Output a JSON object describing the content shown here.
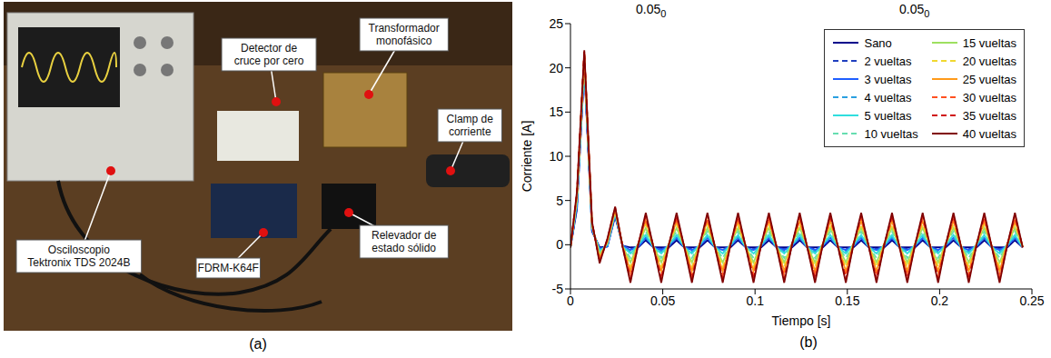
{
  "top_texts": [
    {
      "text": "0.05",
      "sub": "0"
    },
    {
      "text": "0.05",
      "sub": "0"
    }
  ],
  "panel_a": {
    "panel_label": "(a)",
    "callouts": [
      {
        "text": [
          "Osciloscopio",
          "Tektronix TDS 2024B"
        ]
      },
      {
        "text": [
          "Detector de",
          "cruce por cero"
        ]
      },
      {
        "text": [
          "Transformador",
          "monofásico"
        ]
      },
      {
        "text": [
          "Clamp de",
          "corriente"
        ]
      },
      {
        "text": [
          "FDRM-K64F"
        ]
      },
      {
        "text": [
          "Relevador de",
          "estado sólido"
        ]
      }
    ]
  },
  "chart_data": {
    "type": "line",
    "panel_label": "(b)",
    "x_label": "Tiempo [s]",
    "y_label": "Corriente [A]",
    "xlim": [
      0,
      0.25
    ],
    "xticks": [
      0,
      0.05,
      0.1,
      0.15,
      0.2,
      0.25
    ],
    "ylim": [
      -5,
      25
    ],
    "yticks": [
      -5,
      0,
      5,
      10,
      15,
      20,
      25
    ],
    "grid": false,
    "legend": "upper right",
    "x": [
      0,
      0.0035,
      0.0075,
      0.0117,
      0.0158,
      0.02,
      0.0242,
      0.0283,
      0.0325,
      0.0367,
      0.0408,
      0.045,
      0.0492,
      0.0533,
      0.0575,
      0.0617,
      0.0658,
      0.07,
      0.0742,
      0.0783,
      0.0825,
      0.0867,
      0.0908,
      0.095,
      0.0992,
      0.1033,
      0.1075,
      0.1117,
      0.1158,
      0.12,
      0.1242,
      0.1283,
      0.1325,
      0.1367,
      0.1408,
      0.145,
      0.1492,
      0.1533,
      0.1575,
      0.1617,
      0.1658,
      0.17,
      0.1742,
      0.1783,
      0.1825,
      0.1867,
      0.1908,
      0.195,
      0.1992,
      0.2033,
      0.2075,
      0.2117,
      0.2158,
      0.22,
      0.2242,
      0.2283,
      0.2325,
      0.2367,
      0.2408,
      0.245
    ],
    "series": [
      {
        "name": "Sano",
        "color": "#00008b",
        "line_style": "solid",
        "values": [
          -0.3,
          4,
          20,
          1.5,
          -0.3,
          -0.2,
          3.2,
          -0.1,
          -0.3,
          -0.3,
          0.5,
          -0.3,
          -0.3,
          -0.3,
          0.5,
          -0.3,
          -0.3,
          -0.3,
          0.5,
          -0.3,
          -0.3,
          -0.3,
          0.5,
          -0.3,
          -0.3,
          -0.3,
          0.5,
          -0.3,
          -0.3,
          -0.3,
          0.5,
          -0.3,
          -0.3,
          -0.3,
          0.5,
          -0.3,
          -0.3,
          -0.3,
          0.5,
          -0.3,
          -0.3,
          -0.3,
          0.5,
          -0.3,
          -0.3,
          -0.3,
          0.5,
          -0.3,
          -0.3,
          -0.3,
          0.5,
          -0.3,
          -0.3,
          -0.3,
          0.5,
          -0.3,
          -0.3,
          -0.3,
          0.5,
          -0.3
        ]
      },
      {
        "name": "2 vueltas",
        "color": "#1f3fbf",
        "line_style": "dashed",
        "values": [
          -0.3,
          4.2,
          20.2,
          1.6,
          -0.4,
          -0.2,
          3.3,
          -0.1,
          -0.5,
          -0.3,
          0.7,
          -0.3,
          -0.5,
          -0.2,
          0.7,
          -0.3,
          -0.5,
          -0.2,
          0.7,
          -0.3,
          -0.5,
          -0.2,
          0.7,
          -0.3,
          -0.5,
          -0.2,
          0.7,
          -0.3,
          -0.5,
          -0.2,
          0.7,
          -0.3,
          -0.5,
          -0.2,
          0.7,
          -0.3,
          -0.5,
          -0.2,
          0.7,
          -0.3,
          -0.5,
          -0.2,
          0.7,
          -0.3,
          -0.5,
          -0.2,
          0.7,
          -0.3,
          -0.5,
          -0.2,
          0.7,
          -0.3,
          -0.5,
          -0.2,
          0.7,
          -0.3,
          -0.5,
          -0.2,
          0.7,
          -0.3
        ]
      },
      {
        "name": "3 vueltas",
        "color": "#1f5fff",
        "line_style": "solid",
        "values": [
          -0.3,
          4.4,
          20.4,
          1.7,
          -0.5,
          -0.2,
          3.4,
          -0.1,
          -0.6,
          -0.2,
          0.8,
          -0.3,
          -0.6,
          -0.1,
          0.8,
          -0.3,
          -0.6,
          -0.1,
          0.8,
          -0.3,
          -0.6,
          -0.1,
          0.8,
          -0.3,
          -0.6,
          -0.1,
          0.8,
          -0.3,
          -0.6,
          -0.1,
          0.8,
          -0.3,
          -0.6,
          -0.1,
          0.8,
          -0.3,
          -0.6,
          -0.1,
          0.8,
          -0.3,
          -0.6,
          -0.1,
          0.8,
          -0.3,
          -0.6,
          -0.1,
          0.8,
          -0.3,
          -0.6,
          -0.1,
          0.8,
          -0.3,
          -0.6,
          -0.1,
          0.8,
          -0.3,
          -0.6,
          -0.1,
          0.8,
          -0.3
        ]
      },
      {
        "name": "4 vueltas",
        "color": "#2aa0e0",
        "line_style": "dashed",
        "values": [
          -0.3,
          4.6,
          20.6,
          1.8,
          -0.6,
          -0.1,
          3.5,
          -0.2,
          -0.8,
          -0.1,
          0.9,
          -0.3,
          -0.8,
          -0.1,
          0.9,
          -0.3,
          -0.8,
          -0.1,
          0.9,
          -0.3,
          -0.8,
          -0.1,
          0.9,
          -0.3,
          -0.8,
          -0.1,
          0.9,
          -0.3,
          -0.8,
          -0.1,
          0.9,
          -0.3,
          -0.8,
          -0.1,
          0.9,
          -0.3,
          -0.8,
          -0.1,
          0.9,
          -0.3,
          -0.8,
          -0.1,
          0.9,
          -0.3,
          -0.8,
          -0.1,
          0.9,
          -0.3,
          -0.8,
          -0.1,
          0.9,
          -0.3,
          -0.8,
          -0.1,
          0.9,
          -0.3,
          -0.8,
          -0.1,
          0.9,
          -0.3
        ]
      },
      {
        "name": "5 vueltas",
        "color": "#30dede",
        "line_style": "solid",
        "values": [
          -0.3,
          4.8,
          20.8,
          1.9,
          -0.7,
          0,
          3.6,
          -0.2,
          -1,
          0,
          1.1,
          -0.3,
          -1,
          0,
          1.1,
          -0.3,
          -1,
          0,
          1.1,
          -0.3,
          -1,
          0,
          1.1,
          -0.3,
          -1,
          0,
          1.1,
          -0.3,
          -1,
          0,
          1.1,
          -0.3,
          -1,
          0,
          1.1,
          -0.3,
          -1,
          0,
          1.1,
          -0.3,
          -1,
          0,
          1.1,
          -0.3,
          -1,
          0,
          1.1,
          -0.3,
          -1,
          0,
          1.1,
          -0.3,
          -1,
          0,
          1.1,
          -0.3,
          -1,
          0,
          1.1,
          -0.3
        ]
      },
      {
        "name": "10 vueltas",
        "color": "#66ddb0",
        "line_style": "dashed",
        "values": [
          -0.3,
          5,
          21,
          2,
          -0.9,
          0.1,
          3.7,
          -0.2,
          -1.5,
          0.1,
          1.5,
          -0.2,
          -1.5,
          0.1,
          1.5,
          -0.2,
          -1.5,
          0.1,
          1.5,
          -0.2,
          -1.5,
          0.1,
          1.5,
          -0.2,
          -1.5,
          0.1,
          1.5,
          -0.2,
          -1.5,
          0.1,
          1.5,
          -0.2,
          -1.5,
          0.1,
          1.5,
          -0.2,
          -1.5,
          0.1,
          1.5,
          -0.2,
          -1.5,
          0.1,
          1.5,
          -0.2,
          -1.5,
          0.1,
          1.5,
          -0.2,
          -1.5,
          0.1,
          1.5,
          -0.2,
          -1.5,
          0.1,
          1.5,
          -0.2,
          -1.5,
          0.1,
          1.5,
          -0.2
        ]
      },
      {
        "name": "15 vueltas",
        "color": "#9ee060",
        "line_style": "solid",
        "values": [
          -0.3,
          5.2,
          21.2,
          2.1,
          -1.1,
          0.2,
          3.8,
          -0.2,
          -2,
          0.1,
          1.9,
          -0.2,
          -2,
          0.1,
          1.9,
          -0.2,
          -2,
          0.1,
          1.9,
          -0.2,
          -2,
          0.1,
          1.9,
          -0.2,
          -2,
          0.1,
          1.9,
          -0.2,
          -2,
          0.1,
          1.9,
          -0.2,
          -2,
          0.1,
          1.9,
          -0.2,
          -2,
          0.1,
          1.9,
          -0.2,
          -2,
          0.1,
          1.9,
          -0.2,
          -2,
          0.1,
          1.9,
          -0.2,
          -2,
          0.1,
          1.9,
          -0.2,
          -2,
          0.1,
          1.9,
          -0.2,
          -2,
          0.1,
          1.9,
          -0.2
        ]
      },
      {
        "name": "20 vueltas",
        "color": "#f0d830",
        "line_style": "dashed",
        "values": [
          -0.3,
          5.4,
          21.4,
          2.2,
          -1.3,
          0.3,
          3.9,
          -0.2,
          -2.5,
          0.1,
          2.3,
          -0.2,
          -2.5,
          0.1,
          2.3,
          -0.2,
          -2.5,
          0.1,
          2.3,
          -0.2,
          -2.5,
          0.1,
          2.3,
          -0.2,
          -2.5,
          0.1,
          2.3,
          -0.2,
          -2.5,
          0.1,
          2.3,
          -0.2,
          -2.5,
          0.1,
          2.3,
          -0.2,
          -2.5,
          0.1,
          2.3,
          -0.2,
          -2.5,
          0.1,
          2.3,
          -0.2,
          -2.5,
          0.1,
          2.3,
          -0.2,
          -2.5,
          0.1,
          2.3,
          -0.2,
          -2.5,
          0.1,
          2.3,
          -0.2,
          -2.5,
          0.1,
          2.3,
          -0.2
        ]
      },
      {
        "name": "25 vueltas",
        "color": "#ff9a1a",
        "line_style": "solid",
        "values": [
          -0.3,
          5.6,
          21.6,
          2.3,
          -1.5,
          0.4,
          4,
          -0.2,
          -3,
          0.1,
          2.7,
          -0.2,
          -3,
          0.1,
          2.7,
          -0.2,
          -3,
          0.1,
          2.7,
          -0.2,
          -3,
          0.1,
          2.7,
          -0.2,
          -3,
          0.1,
          2.7,
          -0.2,
          -3,
          0.1,
          2.7,
          -0.2,
          -3,
          0.1,
          2.7,
          -0.2,
          -3,
          0.1,
          2.7,
          -0.2,
          -3,
          0.1,
          2.7,
          -0.2,
          -3,
          0.1,
          2.7,
          -0.2,
          -3,
          0.1,
          2.7,
          -0.2,
          -3,
          0.1,
          2.7,
          -0.2,
          -3,
          0.1,
          2.7,
          -0.2
        ]
      },
      {
        "name": "30 vueltas",
        "color": "#ff5020",
        "line_style": "dashed",
        "values": [
          -0.3,
          5.8,
          21.8,
          2.4,
          -1.7,
          0.5,
          4.1,
          -0.2,
          -3.5,
          0.1,
          3,
          -0.3,
          -3.5,
          0,
          3,
          -0.3,
          -3.5,
          0,
          3,
          -0.3,
          -3.5,
          0,
          3,
          -0.3,
          -3.5,
          0,
          3,
          -0.3,
          -3.5,
          0,
          3,
          -0.3,
          -3.5,
          0,
          3,
          -0.3,
          -3.5,
          0,
          3,
          -0.3,
          -3.5,
          0,
          3,
          -0.3,
          -3.5,
          0,
          3,
          -0.3,
          -3.5,
          0,
          3,
          -0.3,
          -3.5,
          0,
          3,
          -0.3,
          -3.5,
          0,
          3,
          -0.3
        ]
      },
      {
        "name": "35 vueltas",
        "color": "#d01010",
        "line_style": "dashed",
        "values": [
          -0.3,
          5.9,
          21.9,
          2.5,
          -1.9,
          0.6,
          4.2,
          -0.3,
          -3.9,
          0,
          3.3,
          -0.3,
          -3.9,
          0,
          3.3,
          -0.3,
          -3.9,
          0,
          3.3,
          -0.3,
          -3.9,
          0,
          3.3,
          -0.3,
          -3.9,
          0,
          3.3,
          -0.3,
          -3.9,
          0,
          3.3,
          -0.3,
          -3.9,
          0,
          3.3,
          -0.3,
          -3.9,
          0,
          3.3,
          -0.3,
          -3.9,
          0,
          3.3,
          -0.3,
          -3.9,
          0,
          3.3,
          -0.3,
          -3.9,
          0,
          3.3,
          -0.3,
          -3.9,
          0,
          3.3,
          -0.3,
          -3.9,
          0,
          3.3,
          -0.3
        ]
      },
      {
        "name": "40 vueltas",
        "color": "#800000",
        "line_style": "solid",
        "values": [
          -0.3,
          6,
          22,
          2.6,
          -2.1,
          0.7,
          4.3,
          -0.3,
          -4.3,
          0,
          3.6,
          -0.3,
          -4.3,
          0,
          3.6,
          -0.3,
          -4.3,
          0,
          3.6,
          -0.3,
          -4.3,
          0,
          3.6,
          -0.3,
          -4.3,
          0,
          3.6,
          -0.3,
          -4.3,
          0,
          3.6,
          -0.3,
          -4.3,
          0,
          3.6,
          -0.3,
          -4.3,
          0,
          3.6,
          -0.3,
          -4.3,
          0,
          3.6,
          -0.3,
          -4.3,
          0,
          3.6,
          -0.3,
          -4.3,
          0,
          3.6,
          -0.3,
          -4.3,
          0,
          3.6,
          -0.3,
          -4.3,
          0,
          3.6,
          -0.3
        ]
      }
    ]
  }
}
